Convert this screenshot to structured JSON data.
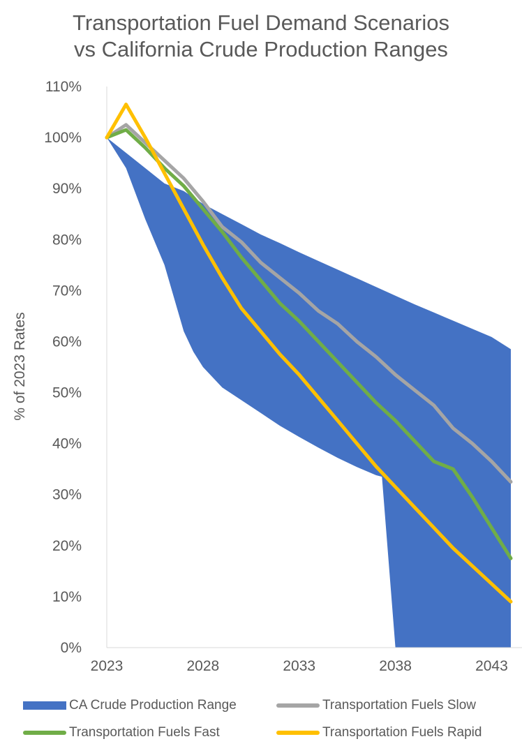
{
  "chart_data": {
    "type": "area",
    "title_lines": [
      "Transportation Fuel Demand Scenarios",
      "vs California Crude Production Ranges"
    ],
    "xlabel": "",
    "ylabel": "% of 2023 Rates",
    "x_ticks": [
      2023,
      2028,
      2033,
      2038,
      2043
    ],
    "xlim": [
      2023,
      2044
    ],
    "y_ticks": [
      "0%",
      "10%",
      "20%",
      "30%",
      "40%",
      "50%",
      "60%",
      "70%",
      "80%",
      "90%",
      "100%",
      "110%"
    ],
    "ylim": [
      0,
      110
    ],
    "range_series": {
      "name": "CA Crude Production Range",
      "color": "#4472C4",
      "upper": {
        "x": [
          2023,
          2024,
          2025,
          2026,
          2027,
          2028,
          2029,
          2030,
          2031,
          2032,
          2033,
          2034,
          2035,
          2036,
          2037,
          2038,
          2039,
          2040,
          2041,
          2042,
          2043,
          2044
        ],
        "y": [
          100,
          97,
          94,
          91,
          89.5,
          87,
          85,
          83,
          81,
          79.3,
          77.5,
          75.8,
          74.1,
          72.4,
          70.7,
          69,
          67.3,
          65.7,
          64.1,
          62.5,
          60.9,
          58.5
        ]
      },
      "lower": {
        "x": [
          2023,
          2024,
          2025,
          2026,
          2027,
          2027.5,
          2028,
          2029,
          2030,
          2031,
          2032,
          2033,
          2034,
          2035,
          2036,
          2037,
          2037.3,
          2038,
          2039,
          2040,
          2041,
          2042,
          2043,
          2044
        ],
        "y": [
          100,
          94,
          84,
          75,
          62,
          58,
          55,
          51,
          48.5,
          46,
          43.5,
          41.3,
          39.2,
          37.2,
          35.4,
          33.8,
          33.5,
          0,
          0,
          0,
          0,
          0,
          0,
          0
        ]
      }
    },
    "series": [
      {
        "name": "Transportation Fuels Slow",
        "color": "#A5A5A5",
        "x": [
          2023,
          2024,
          2025,
          2026,
          2027,
          2028,
          2029,
          2030,
          2031,
          2032,
          2033,
          2034,
          2035,
          2036,
          2037,
          2038,
          2039,
          2040,
          2041,
          2042,
          2043,
          2044
        ],
        "y": [
          100,
          102.5,
          99,
          95.5,
          92,
          87.5,
          82.5,
          79.5,
          75.5,
          72.5,
          69.5,
          66,
          63.5,
          60,
          57,
          53.5,
          50.5,
          47.5,
          43,
          40,
          36.5,
          32.5
        ]
      },
      {
        "name": "Transportation Fuels Fast",
        "color": "#70AD47",
        "x": [
          2023,
          2024,
          2025,
          2026,
          2027,
          2028,
          2029,
          2030,
          2031,
          2032,
          2033,
          2034,
          2035,
          2036,
          2037,
          2038,
          2039,
          2040,
          2041,
          2042,
          2043,
          2044
        ],
        "y": [
          100,
          101.5,
          98,
          94,
          90.5,
          86,
          81.5,
          76.5,
          72,
          67.5,
          64,
          60,
          56,
          52,
          48,
          44.5,
          40.5,
          36.5,
          35,
          29.5,
          23.5,
          17.5
        ]
      },
      {
        "name": "Transportation Fuels Rapid",
        "color": "#FFC000",
        "x": [
          2023,
          2024,
          2025,
          2026,
          2027,
          2028,
          2029,
          2030,
          2031,
          2032,
          2033,
          2034,
          2035,
          2036,
          2037,
          2038,
          2039,
          2040,
          2041,
          2042,
          2043,
          2044
        ],
        "y": [
          100,
          106.5,
          100,
          93,
          86,
          79,
          72.5,
          66.5,
          62,
          57.5,
          53.5,
          49,
          44.5,
          40,
          35.5,
          31.5,
          27.5,
          23.5,
          19.5,
          16,
          12.5,
          9
        ]
      }
    ],
    "legend": {
      "position": "bottom",
      "entries": [
        "CA Crude Production Range",
        "Transportation Fuels Slow",
        "Transportation Fuels Fast",
        "Transportation Fuels Rapid"
      ]
    },
    "grid": false
  }
}
